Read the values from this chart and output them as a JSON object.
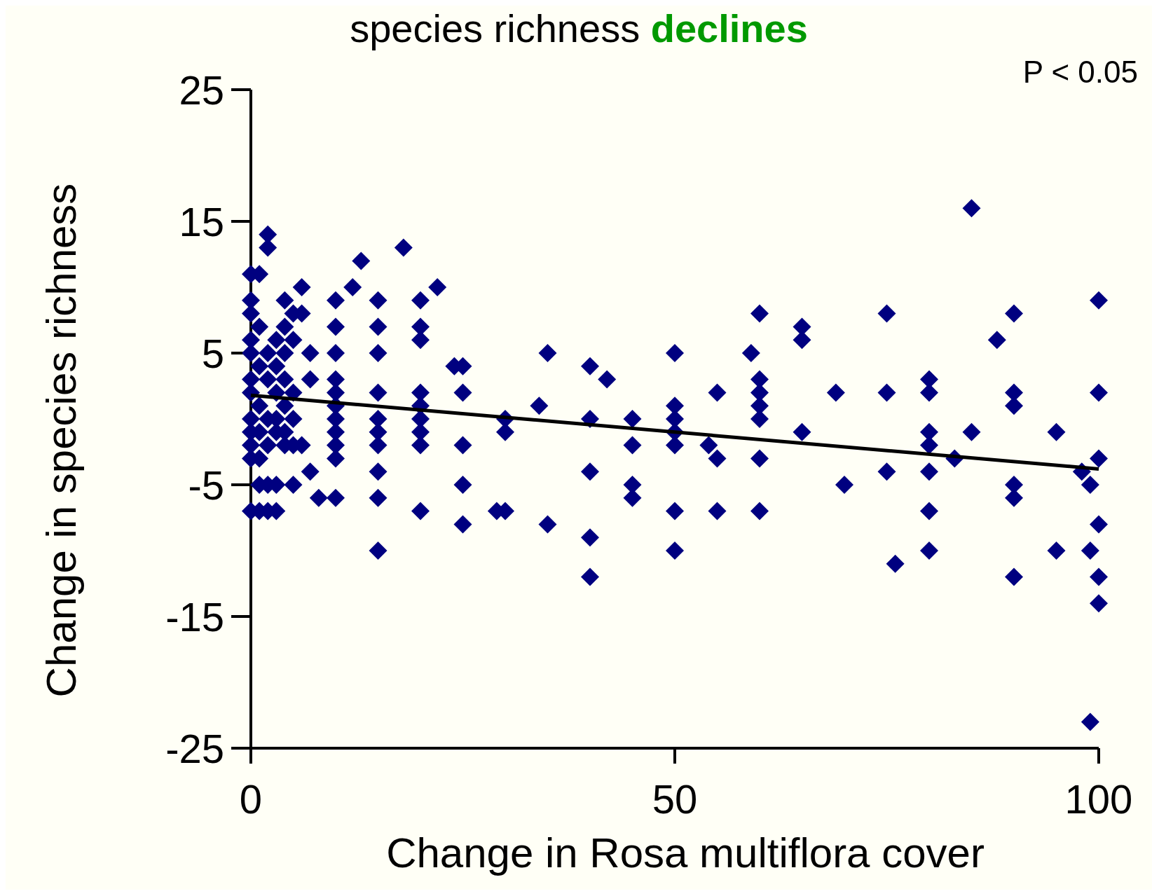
{
  "chart_data": {
    "type": "scatter",
    "title": "species richness declines",
    "xlabel": "Change in Rosa multiflora cover",
    "ylabel": "Change in species richness",
    "annotations": [
      "P < 0.05"
    ],
    "xlim": [
      0,
      100
    ],
    "xticks": [
      0,
      50,
      100
    ],
    "ylim": [
      -25,
      25
    ],
    "yticks": [
      -25,
      -15,
      -5,
      5,
      15,
      25
    ],
    "series": [
      {
        "color": "#000080",
        "marker": "diamond",
        "x": [
          0,
          0,
          0,
          0,
          0,
          0,
          0,
          0,
          0,
          0,
          0,
          0,
          1,
          1,
          1,
          1,
          1,
          1,
          1,
          1,
          2,
          2,
          2,
          2,
          2,
          2,
          2,
          2,
          3,
          3,
          3,
          3,
          3,
          3,
          3,
          4,
          4,
          4,
          4,
          4,
          4,
          4,
          5,
          5,
          5,
          5,
          5,
          5,
          6,
          6,
          6,
          7,
          7,
          7,
          8,
          10,
          10,
          10,
          10,
          10,
          10,
          10,
          10,
          10,
          10,
          10,
          12,
          13,
          15,
          15,
          15,
          15,
          15,
          15,
          15,
          15,
          15,
          15,
          18,
          20,
          20,
          20,
          20,
          20,
          20,
          20,
          20,
          20,
          22,
          24,
          25,
          25,
          25,
          25,
          25,
          29,
          30,
          30,
          30,
          34,
          35,
          35,
          40,
          40,
          40,
          40,
          40,
          42,
          45,
          45,
          45,
          45,
          50,
          50,
          50,
          50,
          50,
          50,
          50,
          54,
          55,
          55,
          55,
          59,
          60,
          60,
          60,
          60,
          60,
          60,
          60,
          65,
          65,
          65,
          69,
          70,
          75,
          75,
          75,
          76,
          80,
          80,
          80,
          80,
          80,
          80,
          80,
          83,
          85,
          85,
          88,
          90,
          90,
          90,
          90,
          90,
          90,
          95,
          95,
          98,
          99,
          99,
          99,
          100,
          100,
          100,
          100,
          100,
          100
        ],
        "values": [
          11,
          9,
          8,
          6,
          5,
          3,
          2,
          0,
          -1,
          -2,
          -3,
          -7,
          11,
          7,
          4,
          1,
          -1,
          -3,
          -5,
          -7,
          14,
          13,
          5,
          3,
          0,
          -2,
          -5,
          -7,
          6,
          4,
          2,
          0,
          -1,
          -5,
          -7,
          9,
          7,
          5,
          3,
          1,
          -1,
          -2,
          8,
          6,
          2,
          0,
          -2,
          -5,
          10,
          8,
          -2,
          5,
          3,
          -4,
          -6,
          9,
          7,
          5,
          3,
          2,
          1,
          0,
          -1,
          -2,
          -3,
          -6,
          10,
          12,
          9,
          7,
          5,
          2,
          0,
          -1,
          -2,
          -4,
          -6,
          -10,
          13,
          9,
          7,
          6,
          2,
          1,
          0,
          -1,
          -2,
          -7,
          10,
          4,
          4,
          2,
          -2,
          -5,
          -8,
          -7,
          0,
          -1,
          -7,
          1,
          5,
          -8,
          4,
          0,
          -4,
          -9,
          -12,
          3,
          0,
          -2,
          -5,
          -6,
          5,
          1,
          0,
          -1,
          -2,
          -7,
          -10,
          -2,
          2,
          -3,
          -7,
          5,
          8,
          3,
          2,
          1,
          0,
          -3,
          -7,
          7,
          6,
          -1,
          2,
          -5,
          8,
          2,
          -4,
          -11,
          3,
          2,
          -1,
          -2,
          -4,
          -7,
          -10,
          -3,
          16,
          -1,
          6,
          8,
          2,
          1,
          -5,
          -6,
          -12,
          -1,
          -10,
          -4,
          -5,
          -10,
          -23,
          9,
          2,
          -3,
          -8,
          -12,
          -14
        ]
      },
      {
        "type": "line",
        "marker": "none",
        "color": "#000000",
        "x": [
          0,
          100
        ],
        "values": [
          1.8,
          -3.8
        ]
      }
    ]
  }
}
